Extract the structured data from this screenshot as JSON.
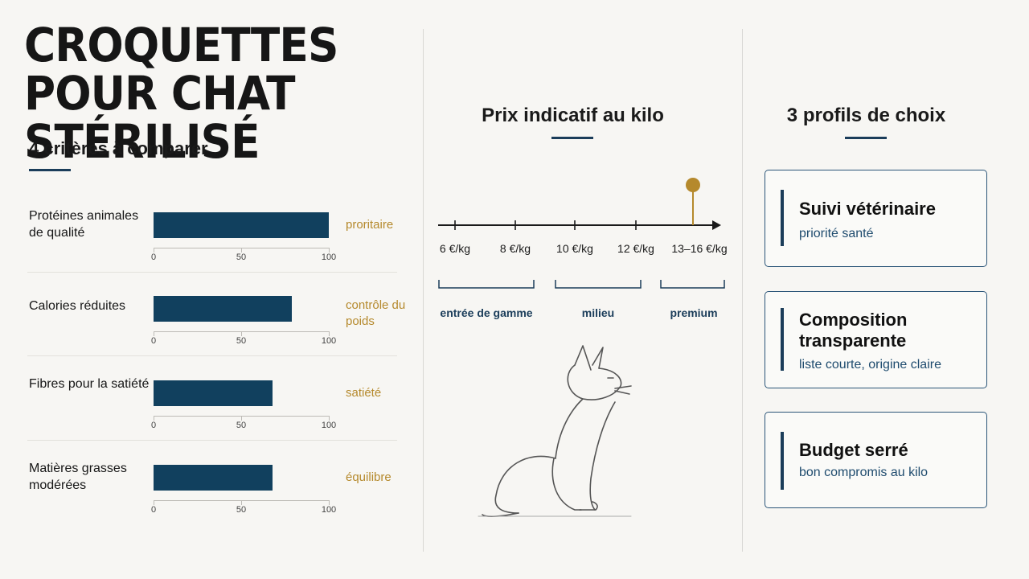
{
  "title": "CROQUETTES POUR CHAT STÉRILISÉ",
  "criteria_heading": "4 critères à comparer",
  "price_heading": "Prix indicatif au kilo",
  "profiles_heading": "3 profils de choix",
  "colors": {
    "bar": "#11405e",
    "accent": "#b5892c",
    "navy": "#1b3d5a"
  },
  "chart_data": [
    {
      "type": "bar",
      "title": "4 critères à comparer",
      "categories": [
        "Protéines animales de qualité",
        "Calories réduites",
        "Fibres pour la satiété",
        "Matières grasses modérées"
      ],
      "values": [
        100,
        79,
        68,
        68
      ],
      "annotations": [
        "proritaire",
        "contrôle du poids",
        "satiété",
        "équilibre"
      ],
      "xlim": [
        0,
        100
      ],
      "ticks": [
        "0",
        "50",
        "100"
      ]
    },
    {
      "type": "line",
      "title": "Prix indicatif au kilo",
      "ticks": [
        "6 €/kg",
        "8 €/kg",
        "10 €/kg",
        "12 €/kg",
        "13–16 €/kg"
      ],
      "ranges": [
        "entrée de gamme",
        "milieu",
        "premium"
      ],
      "highlight": "13–16 €/kg"
    }
  ],
  "profiles": [
    {
      "title": "Suivi vétérinaire",
      "subtitle": "priorité santé"
    },
    {
      "title": "Composition transparente",
      "subtitle": "liste courte, origine claire"
    },
    {
      "title": "Budget serré",
      "subtitle": "bon compromis au kilo"
    }
  ]
}
